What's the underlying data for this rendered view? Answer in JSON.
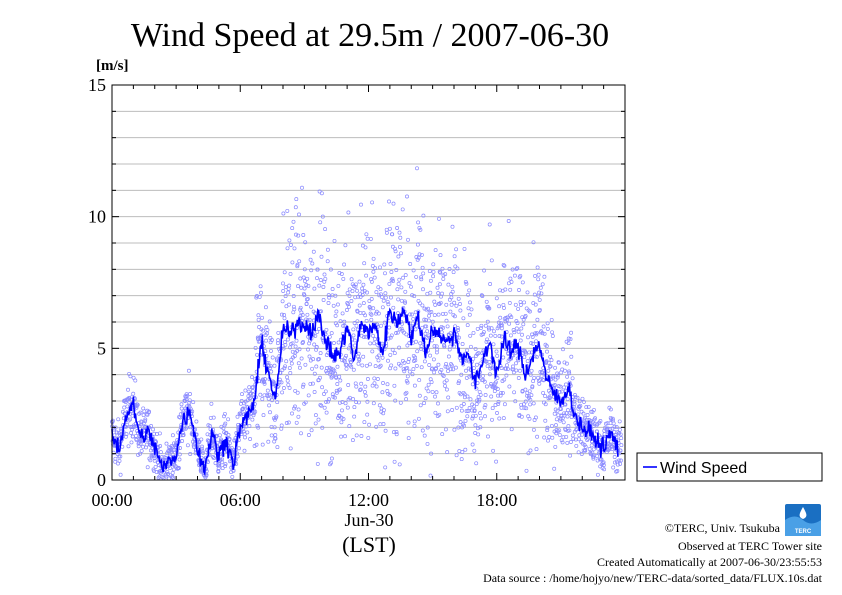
{
  "chart_data": {
    "type": "line",
    "title": "Wind Speed at 29.5m / 2007-06-30",
    "ylabel": "[m/s]",
    "xlabel": "(LST)",
    "date_label": "Jun-30",
    "xlim": [
      "00:00",
      "24:00"
    ],
    "ylim": [
      0,
      15
    ],
    "x_ticks": [
      "00:00",
      "06:00",
      "12:00",
      "18:00"
    ],
    "y_ticks": [
      0,
      5,
      10,
      15
    ],
    "grid": true,
    "legend_position": "right-bottom",
    "series": [
      {
        "name": "Wind Speed",
        "color": "#0000ff",
        "scatter_color": "#8a8aff",
        "x": [
          "00:00",
          "00:20",
          "00:40",
          "01:00",
          "01:20",
          "01:40",
          "02:00",
          "02:20",
          "02:40",
          "03:00",
          "03:20",
          "03:40",
          "04:00",
          "04:20",
          "04:40",
          "05:00",
          "05:20",
          "05:40",
          "06:00",
          "06:20",
          "06:40",
          "07:00",
          "07:20",
          "07:40",
          "08:00",
          "08:20",
          "08:40",
          "09:00",
          "09:20",
          "09:40",
          "10:00",
          "10:20",
          "10:40",
          "11:00",
          "11:20",
          "11:40",
          "12:00",
          "12:20",
          "12:40",
          "13:00",
          "13:20",
          "13:40",
          "14:00",
          "14:20",
          "14:40",
          "15:00",
          "15:20",
          "15:40",
          "16:00",
          "16:20",
          "16:40",
          "17:00",
          "17:20",
          "17:40",
          "18:00",
          "18:20",
          "18:40",
          "19:00",
          "19:20",
          "19:40",
          "20:00",
          "20:20",
          "20:40",
          "21:00",
          "21:20",
          "21:40",
          "22:00",
          "22:20",
          "22:40",
          "23:00",
          "23:20",
          "23:40"
        ],
        "values": [
          1.7,
          1.2,
          2.5,
          2.8,
          1.6,
          1.8,
          1.3,
          0.4,
          0.7,
          1.0,
          2.3,
          2.6,
          1.2,
          0.4,
          1.8,
          0.9,
          1.6,
          0.6,
          2.0,
          2.4,
          3.0,
          5.2,
          4.0,
          3.0,
          5.8,
          5.5,
          6.0,
          5.9,
          5.7,
          6.2,
          5.3,
          4.7,
          4.8,
          5.9,
          4.5,
          6.0,
          5.6,
          5.8,
          4.8,
          6.5,
          5.9,
          6.6,
          5.4,
          6.2,
          4.8,
          5.8,
          5.5,
          5.2,
          5.6,
          4.7,
          4.8,
          3.6,
          4.5,
          5.3,
          4.0,
          5.3,
          4.9,
          5.1,
          4.0,
          4.7,
          5.2,
          3.8,
          3.3,
          2.9,
          3.6,
          2.4,
          2.0,
          1.8,
          1.5,
          1.2,
          1.8,
          1.2
        ]
      }
    ]
  },
  "credits": {
    "copyright": "©TERC, Univ. Tsukuba",
    "observed": "Observed at TERC Tower site",
    "created": "Created Automatically at 2007-06-30/23:55:53",
    "source": "Data source : /home/hojyo/new/TERC-data/sorted_data/FLUX.10s.dat",
    "logo_text": "TERC"
  }
}
